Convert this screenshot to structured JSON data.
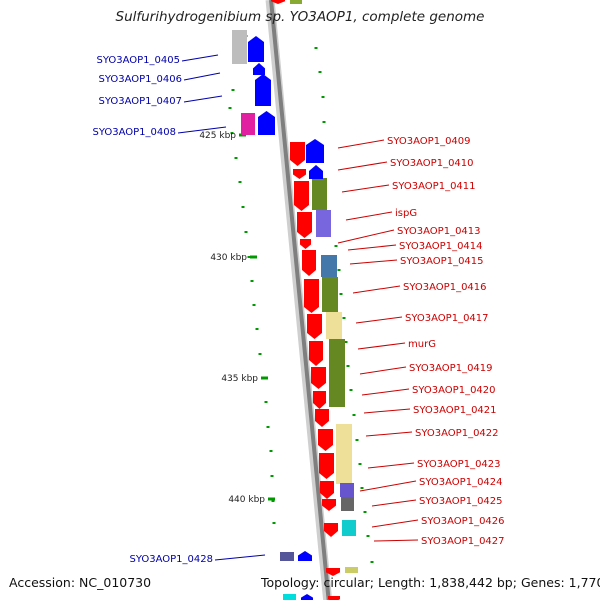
{
  "title": "Sulfurihydrogenibium sp. YO3AOP1, complete genome",
  "footer": {
    "accession_label": "Accession:",
    "accession": "NC_010730",
    "topology_label": "Topology:",
    "topology": "circular",
    "length_label": "Length:",
    "length": "1,838,442 bp",
    "genes_label": "Genes:",
    "genes": "1,770"
  },
  "colors": {
    "backbone": "#7f7f7f",
    "forward_gene": "#ff0000",
    "reverse_gene": "#0000ff",
    "forward_label": "#cc0000",
    "reverse_label": "#0000aa",
    "scale_tick": "#009900"
  },
  "scale_labels": [
    "425 kbp",
    "430 kbp",
    "435 kbp",
    "440 kbp"
  ],
  "left_labels": [
    "SYO3AOP1_0405",
    "SYO3AOP1_0406",
    "SYO3AOP1_0407",
    "SYO3AOP1_0408",
    "SYO3AOP1_0428"
  ],
  "right_labels": [
    "SYO3AOP1_0409",
    "SYO3AOP1_0410",
    "SYO3AOP1_0411",
    "ispG",
    "SYO3AOP1_0413",
    "SYO3AOP1_0414",
    "SYO3AOP1_0415",
    "SYO3AOP1_0416",
    "SYO3AOP1_0417",
    "murG",
    "SYO3AOP1_0419",
    "SYO3AOP1_0420",
    "SYO3AOP1_0421",
    "SYO3AOP1_0422",
    "SYO3AOP1_0423",
    "SYO3AOP1_0424",
    "SYO3AOP1_0425",
    "SYO3AOP1_0426",
    "SYO3AOP1_0427"
  ]
}
